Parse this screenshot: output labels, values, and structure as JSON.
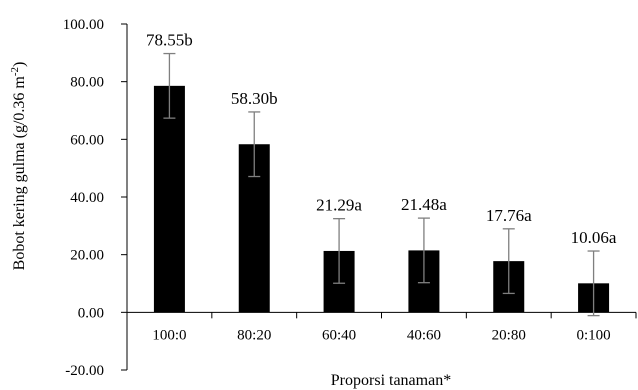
{
  "chart_data": {
    "type": "bar",
    "categories": [
      "100:0",
      "80:20",
      "60:40",
      "40:60",
      "20:80",
      "0:100"
    ],
    "values": [
      78.55,
      58.3,
      21.29,
      21.48,
      17.76,
      10.06
    ],
    "errors": [
      11.2,
      11.2,
      11.2,
      11.2,
      11.2,
      11.2
    ],
    "data_labels": [
      "78.55b",
      "58.30b",
      "21.29a",
      "21.48a",
      "17.76a",
      "10.06a"
    ],
    "y_ticks": [
      "-20.00",
      "0.00",
      "20.00",
      "40.00",
      "60.00",
      "80.00",
      "100.00"
    ],
    "ylim": [
      -20,
      100
    ],
    "xlabel": "Proporsi tanaman*",
    "ylabel": "Bobot kering gulma (g/0.36 m-2)",
    "grid": false,
    "colors": {
      "bar": "#000000",
      "error_bar": "#7f7f7f",
      "axis": "#000000"
    }
  }
}
